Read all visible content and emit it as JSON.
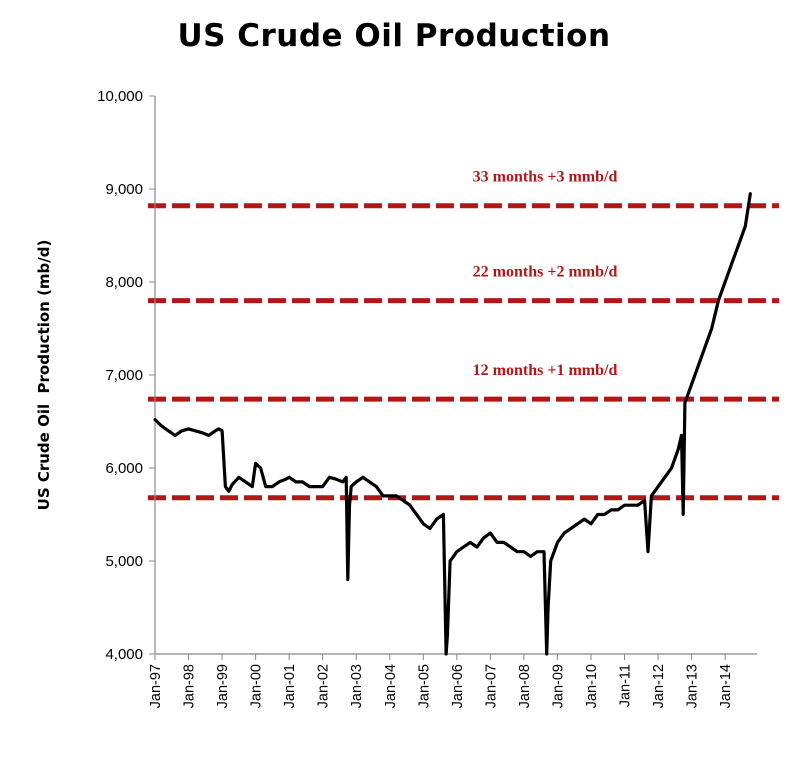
{
  "chart_data": {
    "type": "line",
    "title": "US Crude Oil Production",
    "ylabel": "US Crude Oil  Production (mb/d)",
    "xlabel": "",
    "ylim": [
      4000,
      10000
    ],
    "yticks": [
      "4,000",
      "5,000",
      "6,000",
      "7,000",
      "8,000",
      "9,000",
      "10,000"
    ],
    "yticks_values": [
      4000,
      5000,
      6000,
      7000,
      8000,
      9000,
      10000
    ],
    "xticks": [
      "Jan-97",
      "Jan-98",
      "Jan-99",
      "Jan-00",
      "Jan-01",
      "Jan-02",
      "Jan-03",
      "Jan-04",
      "Jan-05",
      "Jan-06",
      "Jan-07",
      "Jan-08",
      "Jan-09",
      "Jan-10",
      "Jan-11",
      "Jan-12",
      "Jan-13",
      "Jan-14"
    ],
    "xlim": [
      1997.0,
      2014.95
    ],
    "grid": false,
    "legend": "none",
    "reference_lines": [
      {
        "y": 5680,
        "label": ""
      },
      {
        "y": 6740,
        "label": "12 months +1 mmb/d"
      },
      {
        "y": 7800,
        "label": "22 months +2 mmb/d"
      },
      {
        "y": 8820,
        "label": "33 months +3 mmb/d"
      }
    ],
    "reference_line_color": "#b01818",
    "series": [
      {
        "line_color": "#000000",
        "x": [
          1997.0,
          1997.2,
          1997.4,
          1997.6,
          1997.8,
          1998.0,
          1998.2,
          1998.4,
          1998.6,
          1998.8,
          1998.9,
          1999.0,
          1999.1,
          1999.2,
          1999.3,
          1999.5,
          1999.7,
          1999.9,
          2000.0,
          2000.15,
          2000.3,
          2000.5,
          2000.7,
          2000.9,
          2001.0,
          2001.2,
          2001.4,
          2001.6,
          2001.8,
          2002.0,
          2002.2,
          2002.4,
          2002.6,
          2002.7,
          2002.75,
          2002.8,
          2002.85,
          2003.0,
          2003.2,
          2003.4,
          2003.6,
          2003.8,
          2004.0,
          2004.2,
          2004.4,
          2004.6,
          2004.7,
          2004.8,
          2005.0,
          2005.2,
          2005.4,
          2005.6,
          2005.68,
          2005.72,
          2005.8,
          2005.9,
          2006.0,
          2006.2,
          2006.4,
          2006.6,
          2006.8,
          2007.0,
          2007.2,
          2007.4,
          2007.6,
          2007.8,
          2008.0,
          2008.2,
          2008.4,
          2008.6,
          2008.68,
          2008.72,
          2008.8,
          2009.0,
          2009.2,
          2009.4,
          2009.6,
          2009.8,
          2010.0,
          2010.2,
          2010.4,
          2010.6,
          2010.8,
          2011.0,
          2011.2,
          2011.4,
          2011.6,
          2011.7,
          2011.8,
          2012.0,
          2012.2,
          2012.4,
          2012.6,
          2012.7,
          2012.75,
          2012.8,
          2013.0,
          2013.2,
          2013.4,
          2013.6,
          2013.8,
          2014.0,
          2014.2,
          2014.4,
          2014.6,
          2014.75
        ],
        "y": [
          6520,
          6450,
          6400,
          6350,
          6400,
          6420,
          6400,
          6380,
          6350,
          6400,
          6420,
          6400,
          5800,
          5750,
          5820,
          5900,
          5850,
          5800,
          6050,
          6000,
          5800,
          5800,
          5850,
          5880,
          5900,
          5850,
          5850,
          5800,
          5800,
          5800,
          5900,
          5880,
          5850,
          5900,
          4800,
          5600,
          5800,
          5850,
          5900,
          5850,
          5800,
          5700,
          5700,
          5700,
          5650,
          5600,
          5550,
          5500,
          5400,
          5350,
          5450,
          5500,
          4000,
          4200,
          5000,
          5050,
          5100,
          5150,
          5200,
          5150,
          5250,
          5300,
          5200,
          5200,
          5150,
          5100,
          5100,
          5050,
          5100,
          5100,
          4000,
          4500,
          5000,
          5200,
          5300,
          5350,
          5400,
          5450,
          5400,
          5500,
          5500,
          5550,
          5550,
          5600,
          5600,
          5600,
          5650,
          5100,
          5700,
          5800,
          5900,
          6000,
          6200,
          6350,
          5500,
          6700,
          6900,
          7100,
          7300,
          7500,
          7800,
          8000,
          8200,
          8400,
          8600,
          8950
        ]
      }
    ]
  }
}
